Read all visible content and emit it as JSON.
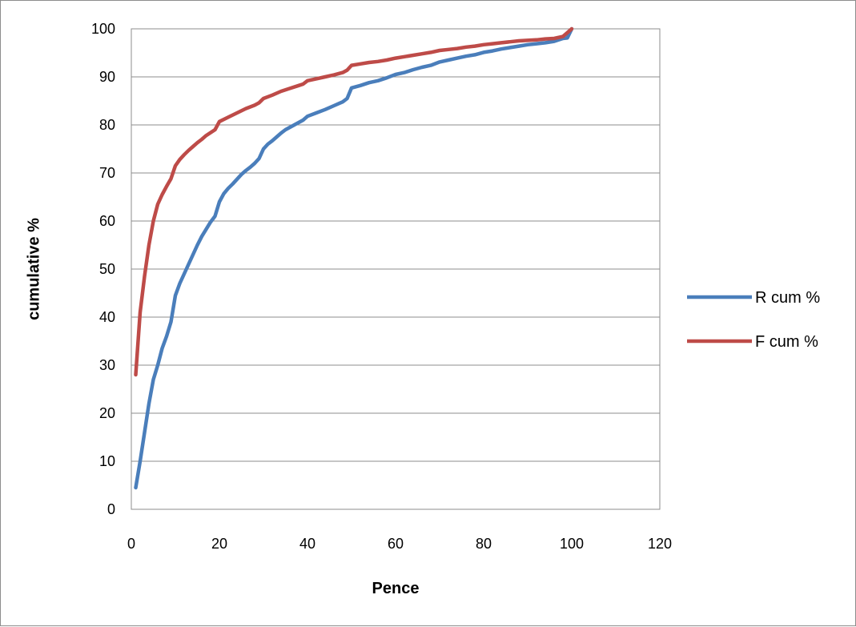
{
  "chart_data": {
    "type": "line",
    "title": "",
    "xlabel": "Pence",
    "ylabel": "cumulative %",
    "xlim": [
      0,
      120
    ],
    "ylim": [
      0,
      100
    ],
    "x_ticks": [
      "0",
      "20",
      "40",
      "60",
      "80",
      "100",
      "120"
    ],
    "y_ticks": [
      "0",
      "10",
      "20",
      "30",
      "40",
      "50",
      "60",
      "70",
      "80",
      "90",
      "100"
    ],
    "grid": "horizontal",
    "legend_position": "right",
    "series": [
      {
        "name": "R cum %",
        "color": "#4a7ebb",
        "points": [
          [
            1,
            4.5
          ],
          [
            2,
            10
          ],
          [
            3,
            16
          ],
          [
            4,
            22
          ],
          [
            5,
            27
          ],
          [
            6,
            30
          ],
          [
            7,
            33.5
          ],
          [
            8,
            36
          ],
          [
            9,
            39
          ],
          [
            10,
            44.5
          ],
          [
            11,
            47
          ],
          [
            12,
            49
          ],
          [
            13,
            51
          ],
          [
            14,
            53
          ],
          [
            15,
            55
          ],
          [
            16,
            56.8
          ],
          [
            17,
            58.3
          ],
          [
            18,
            59.8
          ],
          [
            19,
            61
          ],
          [
            20,
            64
          ],
          [
            21,
            65.7
          ],
          [
            22,
            66.8
          ],
          [
            23,
            67.7
          ],
          [
            24,
            68.7
          ],
          [
            25,
            69.7
          ],
          [
            26,
            70.5
          ],
          [
            27,
            71.2
          ],
          [
            28,
            72
          ],
          [
            29,
            73
          ],
          [
            30,
            75
          ],
          [
            31,
            76
          ],
          [
            32,
            76.7
          ],
          [
            33,
            77.5
          ],
          [
            34,
            78.3
          ],
          [
            35,
            79
          ],
          [
            36,
            79.5
          ],
          [
            37,
            80
          ],
          [
            38,
            80.5
          ],
          [
            39,
            81
          ],
          [
            40,
            81.8
          ],
          [
            42,
            82.5
          ],
          [
            44,
            83.2
          ],
          [
            46,
            84
          ],
          [
            48,
            84.8
          ],
          [
            49,
            85.5
          ],
          [
            50,
            87.7
          ],
          [
            52,
            88.2
          ],
          [
            54,
            88.8
          ],
          [
            56,
            89.2
          ],
          [
            58,
            89.8
          ],
          [
            60,
            90.5
          ],
          [
            62,
            90.9
          ],
          [
            64,
            91.5
          ],
          [
            66,
            92
          ],
          [
            68,
            92.4
          ],
          [
            70,
            93.1
          ],
          [
            72,
            93.5
          ],
          [
            74,
            93.9
          ],
          [
            76,
            94.3
          ],
          [
            78,
            94.6
          ],
          [
            80,
            95.1
          ],
          [
            82,
            95.4
          ],
          [
            84,
            95.8
          ],
          [
            86,
            96.1
          ],
          [
            88,
            96.4
          ],
          [
            90,
            96.7
          ],
          [
            92,
            96.9
          ],
          [
            94,
            97.1
          ],
          [
            96,
            97.4
          ],
          [
            98,
            98
          ],
          [
            99,
            98.1
          ],
          [
            100,
            100
          ]
        ]
      },
      {
        "name": "F cum %",
        "color": "#be4b48",
        "points": [
          [
            1,
            28
          ],
          [
            2,
            41
          ],
          [
            3,
            48.5
          ],
          [
            4,
            55
          ],
          [
            5,
            60
          ],
          [
            6,
            63.5
          ],
          [
            7,
            65.5
          ],
          [
            8,
            67.2
          ],
          [
            9,
            68.8
          ],
          [
            10,
            71.5
          ],
          [
            11,
            72.8
          ],
          [
            12,
            73.8
          ],
          [
            13,
            74.7
          ],
          [
            14,
            75.5
          ],
          [
            15,
            76.3
          ],
          [
            16,
            77
          ],
          [
            17,
            77.8
          ],
          [
            18,
            78.4
          ],
          [
            19,
            79
          ],
          [
            20,
            80.7
          ],
          [
            22,
            81.6
          ],
          [
            24,
            82.5
          ],
          [
            26,
            83.4
          ],
          [
            28,
            84.1
          ],
          [
            29,
            84.6
          ],
          [
            30,
            85.5
          ],
          [
            32,
            86.2
          ],
          [
            34,
            87
          ],
          [
            36,
            87.6
          ],
          [
            38,
            88.2
          ],
          [
            39,
            88.5
          ],
          [
            40,
            89.2
          ],
          [
            42,
            89.6
          ],
          [
            44,
            90
          ],
          [
            46,
            90.4
          ],
          [
            48,
            90.9
          ],
          [
            49,
            91.4
          ],
          [
            50,
            92.4
          ],
          [
            52,
            92.7
          ],
          [
            54,
            93
          ],
          [
            56,
            93.2
          ],
          [
            58,
            93.5
          ],
          [
            60,
            93.9
          ],
          [
            62,
            94.2
          ],
          [
            64,
            94.5
          ],
          [
            66,
            94.8
          ],
          [
            68,
            95.1
          ],
          [
            70,
            95.5
          ],
          [
            72,
            95.7
          ],
          [
            74,
            95.9
          ],
          [
            76,
            96.2
          ],
          [
            78,
            96.4
          ],
          [
            80,
            96.7
          ],
          [
            82,
            96.9
          ],
          [
            84,
            97.1
          ],
          [
            86,
            97.3
          ],
          [
            88,
            97.5
          ],
          [
            90,
            97.6
          ],
          [
            92,
            97.7
          ],
          [
            94,
            97.9
          ],
          [
            96,
            98
          ],
          [
            98,
            98.4
          ],
          [
            99,
            99.2
          ],
          [
            100,
            100
          ]
        ]
      }
    ]
  }
}
